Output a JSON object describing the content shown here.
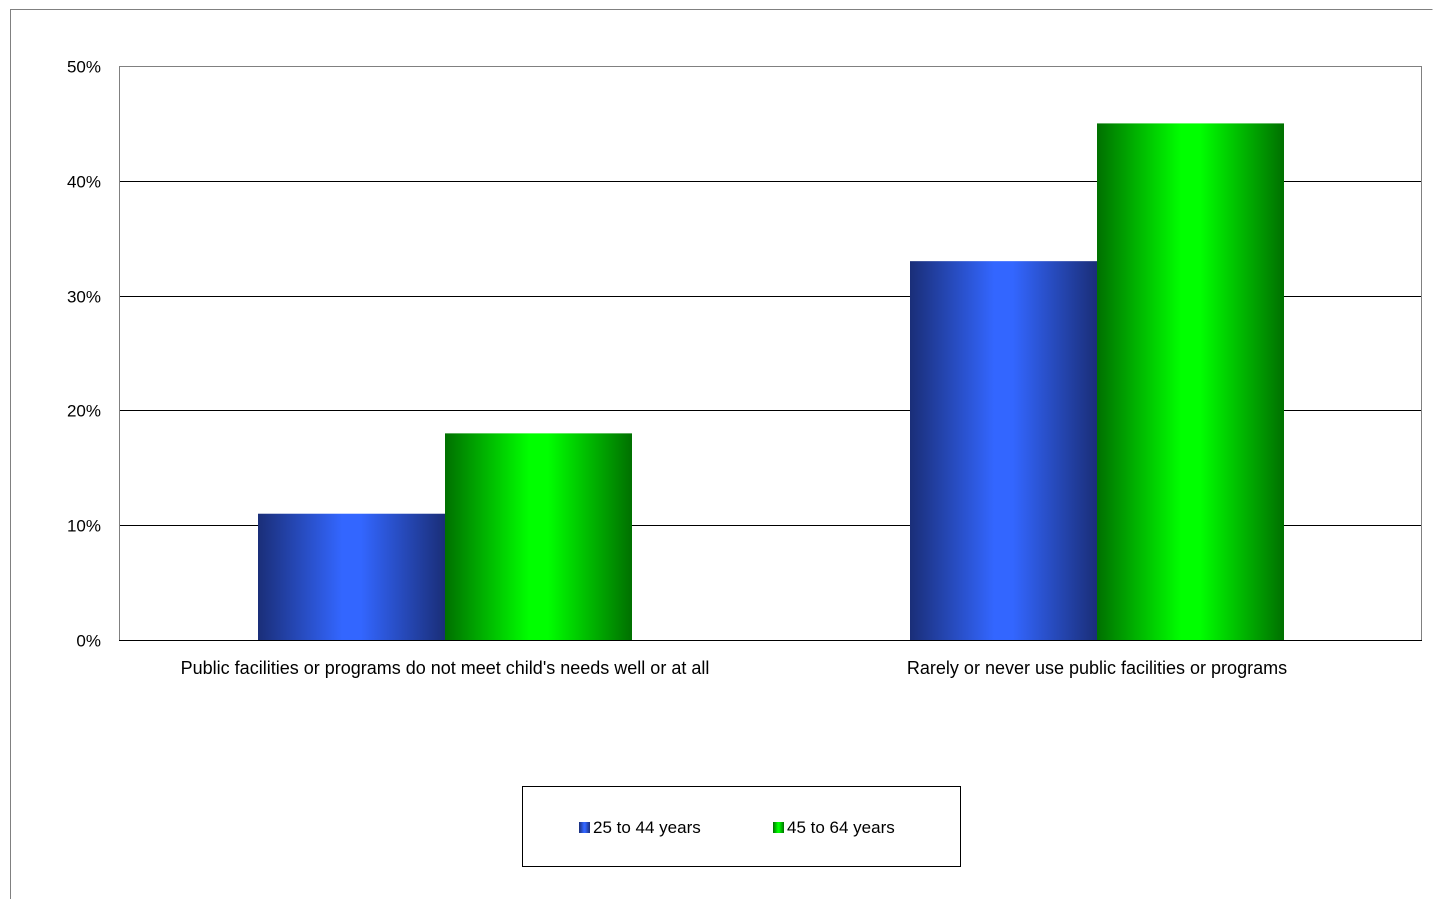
{
  "chart_data": {
    "type": "bar",
    "title": "",
    "xlabel": "",
    "ylabel": "",
    "categories": [
      "Public facilities or programs do not meet child's needs well or at all",
      "Rarely or never use public facilities or programs"
    ],
    "series": [
      {
        "name": "25 to 44 years",
        "values": [
          11,
          33
        ],
        "color": "#3366ff",
        "edge_color": "#1a2e78"
      },
      {
        "name": "45 to 64 years",
        "values": [
          18,
          45
        ],
        "color": "#00ff00",
        "edge_color": "#007000"
      }
    ],
    "ylim": [
      0,
      50
    ],
    "yticks": [
      "0%",
      "10%",
      "20%",
      "30%",
      "40%",
      "50%"
    ],
    "ytick_values": [
      0,
      10,
      20,
      30,
      40,
      50
    ],
    "unit": "%",
    "grid": true,
    "legend_position": "bottom-center"
  }
}
